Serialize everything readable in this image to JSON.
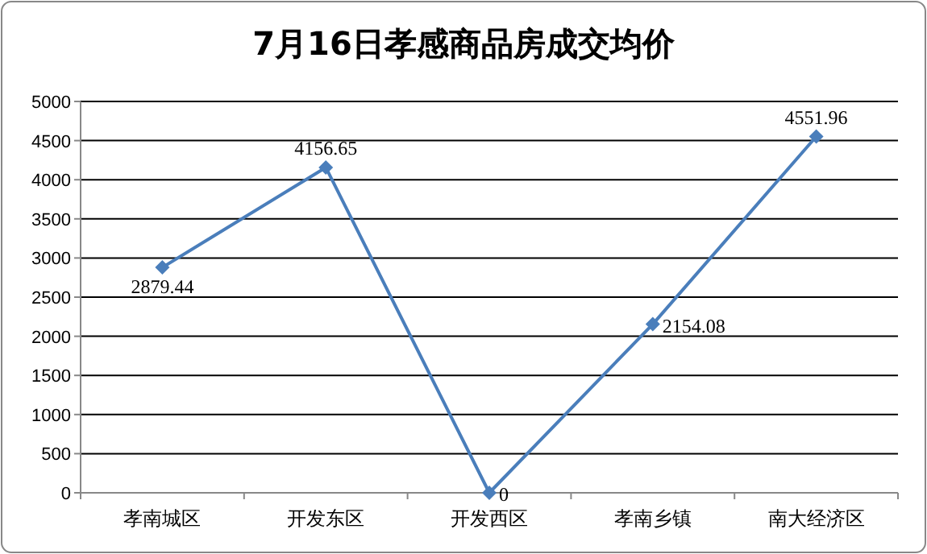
{
  "chart_data": {
    "type": "line",
    "title": "7月16日孝感商品房成交均价",
    "categories": [
      "孝南城区",
      "开发东区",
      "开发西区",
      "孝南乡镇",
      "南大经济区"
    ],
    "series": [
      {
        "color": "#4a7ebb",
        "values": [
          2879.44,
          4156.65,
          0,
          2154.08,
          4551.96
        ]
      }
    ],
    "ylim": [
      0,
      5000
    ],
    "yticks": [
      0,
      500,
      1000,
      1500,
      2000,
      2500,
      3000,
      3500,
      4000,
      4500,
      5000
    ],
    "grid": "y",
    "marker": "diamond",
    "line_style": "solid",
    "data_labels": true
  }
}
